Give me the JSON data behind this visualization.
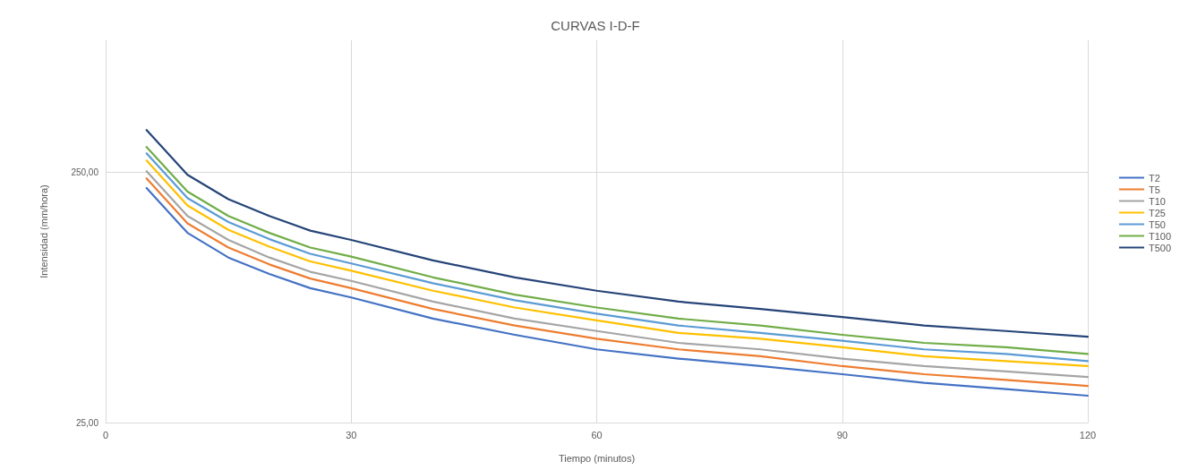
{
  "chart_data": {
    "type": "line",
    "title": "CURVAS I-D-F",
    "xlabel": "Tiempo (minutos)",
    "ylabel": "Intensidad (mm/hora)",
    "x": [
      5,
      10,
      15,
      20,
      25,
      30,
      40,
      50,
      60,
      70,
      80,
      90,
      100,
      110,
      120
    ],
    "series": [
      {
        "name": "T2",
        "color": "#4472c4",
        "values": [
          216,
          143,
          114,
          98,
          86,
          79,
          65,
          56,
          49,
          45,
          42,
          39,
          36,
          34,
          32
        ]
      },
      {
        "name": "T5",
        "color": "#ed7d31",
        "values": [
          236,
          156,
          125,
          107,
          94,
          86,
          71,
          61,
          54,
          49,
          46,
          42,
          39,
          37,
          35
        ]
      },
      {
        "name": "T10",
        "color": "#a5a5a5",
        "values": [
          252,
          167,
          134,
          114,
          100,
          92,
          76,
          65,
          58,
          52,
          49,
          45,
          42,
          40,
          38
        ]
      },
      {
        "name": "T25",
        "color": "#ffc000",
        "values": [
          278,
          184,
          147,
          126,
          110,
          101,
          84,
          72,
          64,
          57,
          54,
          50,
          46,
          44,
          42
        ]
      },
      {
        "name": "T50",
        "color": "#5b9bd5",
        "values": [
          297,
          197,
          158,
          135,
          118,
          108,
          90,
          77,
          68,
          61,
          57,
          53,
          49,
          47,
          44
        ]
      },
      {
        "name": "T100",
        "color": "#70ad47",
        "values": [
          315,
          209,
          167,
          143,
          125,
          115,
          95,
          81,
          72,
          65,
          61,
          56,
          52,
          50,
          47
        ]
      },
      {
        "name": "T500",
        "color": "#264478",
        "values": [
          368,
          244,
          195,
          167,
          146,
          134,
          111,
          95,
          84,
          76,
          71,
          66,
          61,
          58,
          55
        ]
      }
    ],
    "xlim": [
      0,
      120
    ],
    "xticks": [
      0,
      30,
      60,
      90,
      120
    ],
    "ylim": [
      25,
      840
    ],
    "yticks": [
      {
        "value": 25,
        "label": "25,00"
      },
      {
        "value": 250,
        "label": "250,00"
      }
    ],
    "log": "y",
    "grid": true,
    "legend": "right",
    "marker": "none",
    "line_style": "solid"
  }
}
